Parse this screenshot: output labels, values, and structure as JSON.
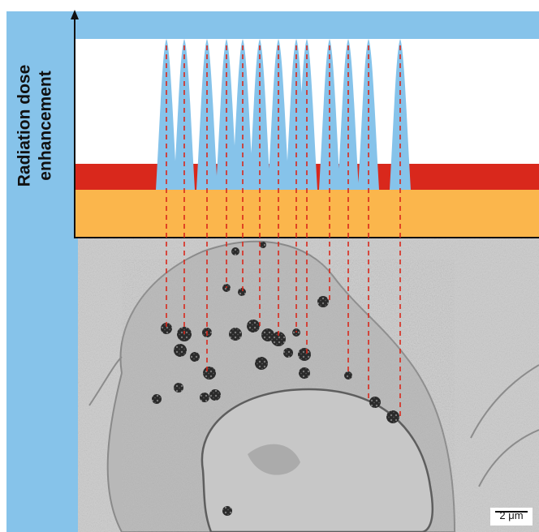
{
  "figure": {
    "y_axis_title_line1": "Radiation dose",
    "y_axis_title_line2": "enhancement",
    "scale_bar_label": "2 μm"
  },
  "colors": {
    "frame_blue": "#86c3ea",
    "peak_blue": "#86c3ea",
    "high_band_red": "#d9281c",
    "base_band_orange": "#fbb64c",
    "guide_line_red": "#d9281c",
    "micrograph_gray": "#c4c4c4"
  },
  "legend_panel": {
    "bands": [
      "high dose enhancement band",
      "baseline dose band"
    ],
    "peak_count": 13
  }
}
